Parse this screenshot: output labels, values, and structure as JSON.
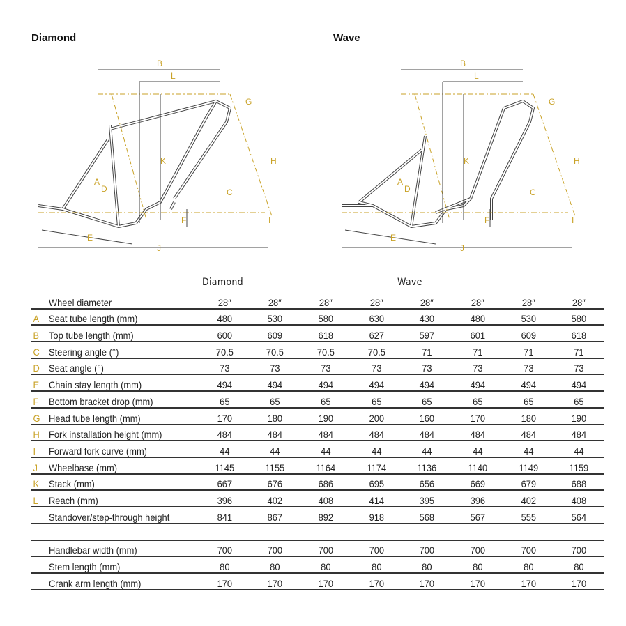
{
  "titles": {
    "diamond": "Diamond",
    "wave": "Wave"
  },
  "diagram_letters": [
    "A",
    "B",
    "C",
    "D",
    "E",
    "F",
    "G",
    "H",
    "I",
    "J",
    "K",
    "L"
  ],
  "colors": {
    "accent": "#c9a227",
    "frame": "#333333"
  },
  "table": {
    "group_headers": [
      "Diamond",
      "Wave"
    ],
    "rows": [
      {
        "letter": "",
        "label": "Wheel diameter",
        "values": [
          "28″",
          "28″",
          "28″",
          "28″",
          "28″",
          "28″",
          "28″",
          "28″"
        ]
      },
      {
        "letter": "A",
        "label": "Seat tube length (mm)",
        "values": [
          "480",
          "530",
          "580",
          "630",
          "430",
          "480",
          "530",
          "580"
        ]
      },
      {
        "letter": "B",
        "label": "Top tube length (mm)",
        "values": [
          "600",
          "609",
          "618",
          "627",
          "597",
          "601",
          "609",
          "618"
        ]
      },
      {
        "letter": "C",
        "label": "Steering angle (°)",
        "values": [
          "70.5",
          "70.5",
          "70.5",
          "70.5",
          "71",
          "71",
          "71",
          "71"
        ]
      },
      {
        "letter": "D",
        "label": "Seat angle (°)",
        "values": [
          "73",
          "73",
          "73",
          "73",
          "73",
          "73",
          "73",
          "73"
        ]
      },
      {
        "letter": "E",
        "label": "Chain stay length (mm)",
        "values": [
          "494",
          "494",
          "494",
          "494",
          "494",
          "494",
          "494",
          "494"
        ]
      },
      {
        "letter": "F",
        "label": "Bottom bracket drop (mm)",
        "values": [
          "65",
          "65",
          "65",
          "65",
          "65",
          "65",
          "65",
          "65"
        ]
      },
      {
        "letter": "G",
        "label": "Head tube length (mm)",
        "values": [
          "170",
          "180",
          "190",
          "200",
          "160",
          "170",
          "180",
          "190"
        ]
      },
      {
        "letter": "H",
        "label": "Fork installation height (mm)",
        "values": [
          "484",
          "484",
          "484",
          "484",
          "484",
          "484",
          "484",
          "484"
        ]
      },
      {
        "letter": "I",
        "label": "Forward fork curve (mm)",
        "values": [
          "44",
          "44",
          "44",
          "44",
          "44",
          "44",
          "44",
          "44"
        ]
      },
      {
        "letter": "J",
        "label": "Wheelbase (mm)",
        "values": [
          "1145",
          "1155",
          "1164",
          "1174",
          "1136",
          "1140",
          "1149",
          "1159"
        ]
      },
      {
        "letter": "K",
        "label": "Stack (mm)",
        "values": [
          "667",
          "676",
          "686",
          "695",
          "656",
          "669",
          "679",
          "688"
        ]
      },
      {
        "letter": "L",
        "label": "Reach (mm)",
        "values": [
          "396",
          "402",
          "408",
          "414",
          "395",
          "396",
          "402",
          "408"
        ]
      },
      {
        "letter": "",
        "label": "Standover/step-through height",
        "values": [
          "841",
          "867",
          "892",
          "918",
          "568",
          "567",
          "555",
          "564"
        ]
      }
    ],
    "extra_rows": [
      {
        "label": "Handlebar width (mm)",
        "values": [
          "700",
          "700",
          "700",
          "700",
          "700",
          "700",
          "700",
          "700"
        ]
      },
      {
        "label": "Stem length (mm)",
        "values": [
          "80",
          "80",
          "80",
          "80",
          "80",
          "80",
          "80",
          "80"
        ]
      },
      {
        "label": "Crank arm length (mm)",
        "values": [
          "170",
          "170",
          "170",
          "170",
          "170",
          "170",
          "170",
          "170"
        ]
      }
    ]
  }
}
